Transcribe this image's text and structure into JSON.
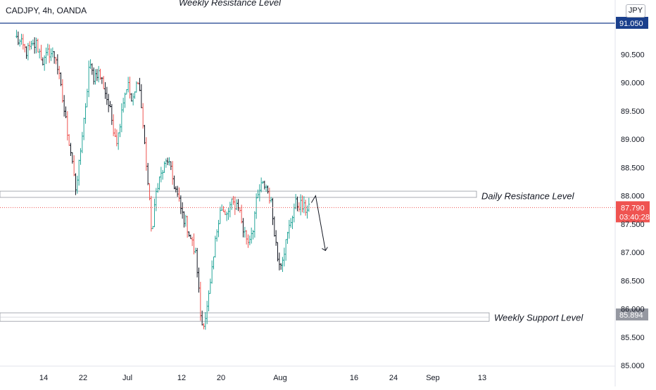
{
  "header": {
    "symbol_title": "CADJPY, 4h, OANDA",
    "currency": "JPY"
  },
  "colors": {
    "up": "#26a69a",
    "down": "#ef5350",
    "neutral": "#131722",
    "resistance_line": "#1a3f8c",
    "price_label": "#ef5350",
    "support_label": "#9598a1",
    "axis_text": "#131722"
  },
  "chart_data": {
    "type": "ohlc",
    "instrument": "CADJPY",
    "timeframe": "4h",
    "source": "OANDA",
    "y_axis": {
      "min": 85.0,
      "max": 91.0,
      "ticks": [
        "85.000",
        "85.500",
        "86.000",
        "86.500",
        "87.000",
        "87.500",
        "88.000",
        "88.500",
        "89.000",
        "89.500",
        "90.000",
        "90.500"
      ]
    },
    "x_axis": {
      "ticks": [
        {
          "label": "14",
          "day": 14
        },
        {
          "label": "22",
          "day": 22
        },
        {
          "label": "Jul",
          "day": 31
        },
        {
          "label": "12",
          "day": 42
        },
        {
          "label": "20",
          "day": 50
        },
        {
          "label": "Aug",
          "day": 62
        },
        {
          "label": "16",
          "day": 77
        },
        {
          "label": "24",
          "day": 85
        },
        {
          "label": "Sep",
          "day": 93
        },
        {
          "label": "13",
          "day": 103
        }
      ]
    },
    "levels": [
      {
        "name": "Weekly Resistance Level",
        "price": 91.05,
        "kind": "line",
        "label_value": "91.050"
      },
      {
        "name": "Daily Resistance Level",
        "price_top": 88.08,
        "price_bottom": 87.97,
        "kind": "zone"
      },
      {
        "name": "Weekly Support Level",
        "price_top": 85.93,
        "price_bottom": 85.78,
        "kind": "zone",
        "label_value": "85.894"
      }
    ],
    "current_price": {
      "value": "87.790",
      "price": 87.79,
      "countdown": "03:40:28"
    },
    "projection": [
      {
        "day": 69.2,
        "price": 88.0
      },
      {
        "day": 71.2,
        "price": 87.03
      }
    ],
    "path": [
      [
        8.5,
        90.78
      ],
      [
        10.5,
        90.55
      ],
      [
        12.5,
        90.68
      ],
      [
        14.0,
        90.35
      ],
      [
        15.0,
        90.55
      ],
      [
        16.5,
        90.45
      ],
      [
        18.0,
        89.6
      ],
      [
        19.0,
        89.05
      ],
      [
        20.0,
        88.55
      ],
      [
        20.5,
        88.0
      ],
      [
        21.5,
        88.85
      ],
      [
        22.5,
        89.5
      ],
      [
        23.2,
        90.3
      ],
      [
        24.2,
        90.1
      ],
      [
        25.0,
        90.2
      ],
      [
        26.0,
        90.0
      ],
      [
        27.2,
        89.6
      ],
      [
        28.2,
        89.2
      ],
      [
        29.0,
        88.95
      ],
      [
        29.8,
        89.55
      ],
      [
        31.0,
        90.0
      ],
      [
        32.0,
        89.6
      ],
      [
        33.2,
        90.1
      ],
      [
        33.8,
        89.6
      ],
      [
        35.0,
        88.4
      ],
      [
        36.0,
        87.3
      ],
      [
        37.0,
        88.2
      ],
      [
        38.0,
        88.4
      ],
      [
        39.2,
        88.65
      ],
      [
        40.0,
        88.35
      ],
      [
        41.0,
        88.05
      ],
      [
        42.0,
        87.7
      ],
      [
        43.0,
        87.5
      ],
      [
        44.0,
        87.2
      ],
      [
        45.0,
        86.9
      ],
      [
        46.0,
        85.7
      ],
      [
        47.0,
        85.9
      ],
      [
        48.0,
        86.5
      ],
      [
        49.0,
        87.3
      ],
      [
        49.8,
        87.8
      ],
      [
        51.0,
        87.6
      ],
      [
        52.0,
        87.85
      ],
      [
        53.5,
        87.85
      ],
      [
        54.5,
        87.4
      ],
      [
        55.5,
        87.2
      ],
      [
        56.5,
        87.45
      ],
      [
        57.0,
        87.8
      ],
      [
        58.0,
        88.15
      ],
      [
        59.0,
        88.2
      ],
      [
        60.0,
        87.95
      ],
      [
        60.7,
        87.5
      ],
      [
        61.5,
        86.9
      ],
      [
        62.2,
        86.85
      ],
      [
        63.0,
        87.1
      ],
      [
        64.0,
        87.5
      ],
      [
        65.0,
        87.85
      ],
      [
        66.0,
        87.85
      ],
      [
        67.0,
        87.75
      ],
      [
        68.0,
        87.85
      ]
    ]
  },
  "annotations": {
    "weekly_resistance": "Weekly Resistance Level",
    "daily_resistance": "Daily Resistance Level",
    "weekly_support": "Weekly Support Level"
  }
}
